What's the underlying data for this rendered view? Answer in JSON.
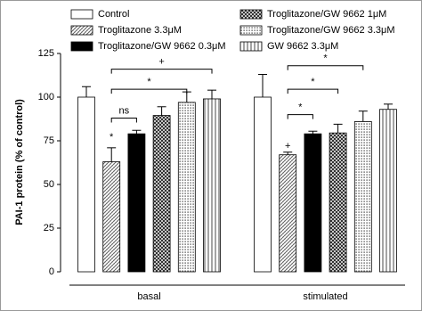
{
  "chart_data": {
    "type": "bar",
    "ylabel": "PAI-1 protein (% of control)",
    "categories": [
      "basal",
      "stimulated"
    ],
    "ylim": [
      0,
      125
    ],
    "yticks": [
      0,
      25,
      50,
      75,
      100,
      125
    ],
    "series": [
      {
        "name": "Control",
        "color": "#ffffff",
        "pattern": "none",
        "values": [
          100,
          100
        ],
        "errors": [
          6,
          13
        ]
      },
      {
        "name": "Troglitazone 3.3μM",
        "color": "#ffffff",
        "pattern": "diagonal",
        "values": [
          63,
          67
        ],
        "errors": [
          8,
          1.5
        ]
      },
      {
        "name": "Troglitazone/GW 9662 0.3μM",
        "color": "#000000",
        "pattern": "solid",
        "values": [
          79,
          79
        ],
        "errors": [
          2,
          1.5
        ]
      },
      {
        "name": "Troglitazone/GW 9662 1μM",
        "color": "#ffffff",
        "pattern": "crosshatch",
        "values": [
          89.5,
          79.5
        ],
        "errors": [
          5,
          5
        ]
      },
      {
        "name": "Troglitazone/GW 9662 3.3μM",
        "color": "#ffffff",
        "pattern": "dots",
        "values": [
          97,
          86
        ],
        "errors": [
          6,
          6
        ]
      },
      {
        "name": "GW 9662 3.3μM",
        "color": "#ffffff",
        "pattern": "vertical",
        "values": [
          99,
          93
        ],
        "errors": [
          5,
          3
        ]
      }
    ],
    "markers": [
      {
        "text": "*",
        "category": 0,
        "series": 1,
        "y": 77
      },
      {
        "text": "+",
        "category": 1,
        "series": 1,
        "y": 72
      }
    ],
    "brackets": [
      {
        "text": "ns",
        "category": 0,
        "from": 1,
        "to": 2,
        "y": 88
      },
      {
        "text": "*",
        "category": 0,
        "from": 1,
        "to": 4,
        "y": 104.5
      },
      {
        "text": "+",
        "category": 0,
        "from": 1,
        "to": 5,
        "y": 116
      },
      {
        "text": "*",
        "category": 1,
        "from": 1,
        "to": 2,
        "y": 90
      },
      {
        "text": "*",
        "category": 1,
        "from": 1,
        "to": 3,
        "y": 104.5
      },
      {
        "text": "*",
        "category": 1,
        "from": 1,
        "to": 4,
        "y": 118
      }
    ]
  }
}
